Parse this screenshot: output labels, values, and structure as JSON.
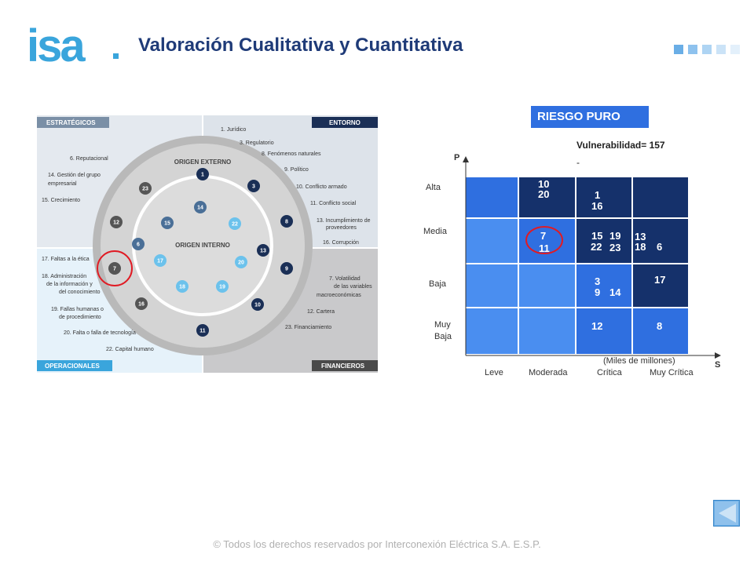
{
  "header": {
    "logo_text": "isa",
    "title": "Valoración Cualitativa y Cuantitativa"
  },
  "colors": {
    "brand_blue": "#1f3b78",
    "logo_cyan": "#3aa5dc",
    "matrix_dark": "#15316b",
    "matrix_mid": "#2f6fe0",
    "matrix_light": "#4a8ef0",
    "highlight": "#e01b24"
  },
  "left_diagram": {
    "quadrants": {
      "strategic": "ESTRATÉGICOS",
      "environment": "ENTORNO",
      "operational": "OPERACIONALES",
      "financial": "FINANCIEROS"
    },
    "outer_ring_label": "ORIGEN EXTERNO",
    "inner_ring_label": "ORIGEN INTERNO",
    "environment_items": [
      "1. Jurídico",
      "3. Regulatorio",
      "8. Fenómenos naturales",
      "9. Político",
      "10. Conflicto armado",
      "11. Conflicto social",
      "13. Incumplimiento de",
      "proveedores",
      "16. Corrupción"
    ],
    "strategic_items": [
      "6. Reputacional",
      "14. Gestión del grupo",
      "empresarial",
      "15. Crecimiento"
    ],
    "operational_items": [
      "17. Faltas a la ética",
      "18. Administración",
      "de la información y",
      "del conocimiento",
      "19. Fallas humanas o",
      "de procedimiento",
      "20. Falta o falla de tecnología",
      "22. Capital humano"
    ],
    "financial_items": [
      "7. Volatilidad",
      "de las variables",
      "macroeconómicas",
      "12. Cartera",
      "23. Financiamiento"
    ],
    "badges": [
      "1",
      "3",
      "8",
      "13",
      "9",
      "10",
      "11",
      "16",
      "7",
      "6",
      "12",
      "23",
      "14",
      "15",
      "22",
      "17",
      "20",
      "18",
      "19"
    ]
  },
  "matrix": {
    "title": "RIESGO PURO",
    "vulnerability": "Vulnerabilidad= 157",
    "dash": "-",
    "y_axis_letter": "P",
    "x_axis_letter": "S",
    "x_unit": "(Miles de millones)",
    "rows": [
      "Alta",
      "Media",
      "Baja",
      "Muy",
      "Baja"
    ],
    "cols": [
      "Leve",
      "Moderada",
      "Crítica",
      "Muy Crítica"
    ],
    "cells": {
      "alta_moderada": [
        "10",
        "20"
      ],
      "alta_critica": [
        "1",
        "16"
      ],
      "media_moderada": [
        "7",
        "11"
      ],
      "media_critica": [
        "15",
        "19",
        "22",
        "23"
      ],
      "media_muy_critica": [
        "13",
        "18",
        "6"
      ],
      "baja_critica": [
        "3",
        "9",
        "14"
      ],
      "baja_muy_critica": [
        "17"
      ],
      "muybaja_critica": [
        "12"
      ],
      "muybaja_muy_critica": [
        "8"
      ]
    }
  },
  "footer": "© Todos los derechos reservados por Interconexión Eléctrica S.A. E.S.P."
}
